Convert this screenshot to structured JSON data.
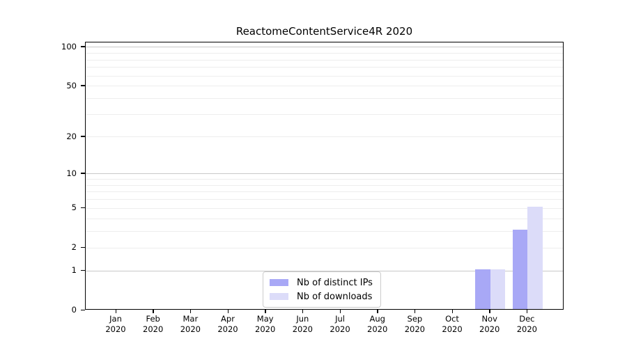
{
  "title": "ReactomeContentService4R 2020",
  "chart_data": {
    "type": "bar",
    "title": "ReactomeContentService4R 2020",
    "categories": [
      "Jan 2020",
      "Feb 2020",
      "Mar 2020",
      "Apr 2020",
      "May 2020",
      "Jun 2020",
      "Jul 2020",
      "Aug 2020",
      "Sep 2020",
      "Oct 2020",
      "Nov 2020",
      "Dec 2020"
    ],
    "series": [
      {
        "name": "Nb of distinct IPs",
        "color": "#a8a8f6",
        "values": [
          0,
          0,
          0,
          0,
          0,
          0,
          0,
          0,
          0,
          0,
          1,
          3
        ]
      },
      {
        "name": "Nb of downloads",
        "color": "#dcdcf9",
        "values": [
          0,
          0,
          0,
          0,
          0,
          0,
          0,
          0,
          0,
          0,
          1,
          5
        ]
      }
    ],
    "xlabel": "",
    "ylabel": "",
    "y_axis": {
      "scale": "log10(value+1)",
      "tick_labels": [
        "0",
        "1",
        "2",
        "5",
        "10",
        "20",
        "50",
        "100"
      ],
      "tick_values": [
        0,
        1,
        2,
        5,
        10,
        20,
        50,
        100
      ],
      "top_value": 109,
      "major_gridlines": [
        1,
        10,
        100
      ],
      "minor_gridlines": [
        2,
        3,
        4,
        5,
        6,
        7,
        8,
        9,
        20,
        30,
        40,
        50,
        60,
        70,
        80,
        90
      ]
    },
    "grid": true,
    "legend_position": "bottom-center"
  },
  "colors": {
    "bar_distinct_ips": "#a8a8f6",
    "bar_downloads": "#dcdcf9",
    "gridline_major": "#c8c8c8",
    "gridline_minor": "#ededed",
    "axis": "#000000",
    "background": "#ffffff",
    "legend_border": "#cccccc"
  }
}
